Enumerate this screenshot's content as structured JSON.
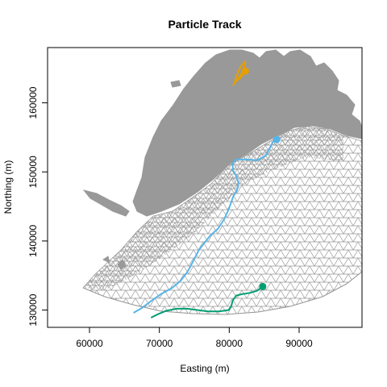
{
  "chart_data": {
    "type": "line",
    "title": "Particle Track",
    "xlabel": "Easting (m)",
    "ylabel": "Northing (m)",
    "xlim": [
      54000,
      99000
    ],
    "ylim": [
      127500,
      168000
    ],
    "x_ticks": [
      60000,
      70000,
      80000,
      90000
    ],
    "y_ticks": [
      130000,
      140000,
      150000,
      160000
    ],
    "x_tick_labels": [
      "60000",
      "70000",
      "80000",
      "90000"
    ],
    "y_tick_labels": [
      "130000",
      "140000",
      "150000",
      "160000"
    ],
    "grid": false,
    "background": "finite-element mesh of a coastal region with land masses",
    "colors": {
      "mesh": "#999999",
      "land": "#999999",
      "frame": "#000000"
    },
    "series": [
      {
        "color": "#E69F00",
        "end_marker": true,
        "x": [
          80500,
          81200,
          81800,
          82200,
          82300,
          81600,
          81000,
          80800,
          81600,
          82300
        ],
        "y": [
          162500,
          163400,
          164300,
          165300,
          166000,
          165200,
          163800,
          163000,
          163600,
          164600
        ]
      },
      {
        "color": "#56B4E9",
        "end_marker": true,
        "x": [
          66300,
          67500,
          68800,
          70200,
          71800,
          73000,
          74000,
          74800,
          75600,
          76500,
          77300,
          78400,
          79300,
          80000,
          80600,
          81100,
          81300,
          81000,
          80500,
          80500,
          81000,
          82300,
          84000,
          85200,
          85800,
          86200,
          86800
        ],
        "y": [
          129600,
          130300,
          131300,
          132300,
          133200,
          134200,
          135500,
          137000,
          138600,
          139800,
          140800,
          141800,
          143200,
          144800,
          146500,
          147300,
          148500,
          149400,
          150300,
          151300,
          151800,
          151800,
          151700,
          152300,
          153400,
          154300,
          154700
        ]
      },
      {
        "color": "#009E73",
        "end_marker": true,
        "x": [
          68800,
          69800,
          71000,
          72500,
          74000,
          75500,
          77000,
          78500,
          79900,
          80300,
          80500,
          81000,
          81800,
          83000,
          84000,
          84800
        ],
        "y": [
          128900,
          129400,
          129900,
          130200,
          130200,
          130000,
          129800,
          129800,
          130000,
          130600,
          131400,
          132100,
          132300,
          132500,
          132800,
          133400
        ]
      }
    ]
  }
}
